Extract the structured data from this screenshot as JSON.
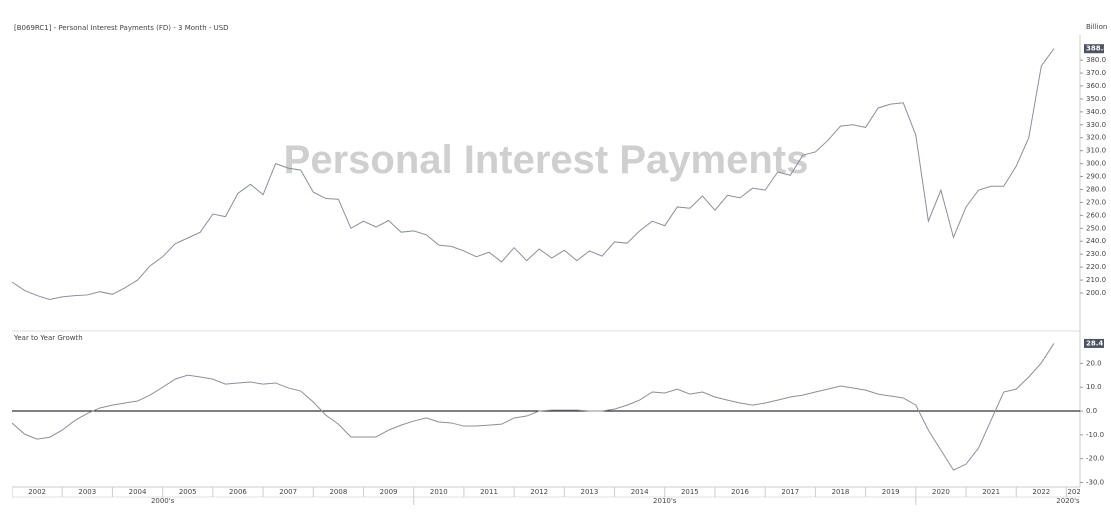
{
  "chart_data": [
    {
      "type": "line",
      "title": "[B069RC1] - Personal Interest Payments (FD) - 3 Month - USD",
      "y_unit_label": "Billion",
      "watermark": "Personal Interest Payments",
      "color": "#8a8fa0",
      "xlim": [
        2002,
        2023.27
      ],
      "x": [
        2002,
        2002.25,
        2002.5,
        2002.75,
        2003,
        2003.25,
        2003.5,
        2003.75,
        2004,
        2004.25,
        2004.5,
        2004.75,
        2005,
        2005.25,
        2005.5,
        2005.75,
        2006,
        2006.25,
        2006.5,
        2006.75,
        2007,
        2007.25,
        2007.5,
        2007.75,
        2008,
        2008.25,
        2008.5,
        2008.75,
        2009,
        2009.25,
        2009.5,
        2009.75,
        2010,
        2010.25,
        2010.5,
        2010.75,
        2011,
        2011.25,
        2011.5,
        2011.75,
        2012,
        2012.25,
        2012.5,
        2012.75,
        2013,
        2013.25,
        2013.5,
        2013.75,
        2014,
        2014.25,
        2014.5,
        2014.75,
        2015,
        2015.25,
        2015.5,
        2015.75,
        2016,
        2016.25,
        2016.5,
        2016.75,
        2017,
        2017.25,
        2017.5,
        2017.75,
        2018,
        2018.25,
        2018.5,
        2018.75,
        2019,
        2019.25,
        2019.5,
        2019.75,
        2020,
        2020.25,
        2020.5,
        2020.75,
        2021,
        2021.25,
        2021.5,
        2021.75,
        2022,
        2022.25,
        2022.5,
        2022.75
      ],
      "values": [
        208.5,
        202,
        198,
        195,
        197,
        198,
        198.5,
        201,
        199,
        204,
        210,
        221,
        228,
        238,
        242.5,
        247,
        261,
        259,
        277,
        284,
        276,
        300,
        296.5,
        295,
        278,
        273,
        272.5,
        250,
        255.5,
        251,
        256,
        247,
        248,
        245,
        237,
        236,
        232.5,
        228,
        231.5,
        224,
        235,
        225,
        234,
        227,
        233,
        225,
        232.5,
        228.5,
        239.5,
        238.5,
        248,
        255.5,
        252,
        266.5,
        265.5,
        275,
        264,
        275.5,
        273.5,
        281,
        279.5,
        293.5,
        291,
        306.5,
        309,
        318,
        329,
        330,
        328,
        343,
        346,
        347,
        322,
        255.5,
        279.5,
        243,
        266.5,
        279.5,
        282.5,
        282.5,
        298,
        320,
        375.5,
        388.8
      ],
      "ylim": [
        171.4,
        399.4
      ],
      "yticks": [
        {
          "value": 200,
          "label": "200.0"
        },
        {
          "value": 210,
          "label": "210.0"
        },
        {
          "value": 220,
          "label": "220.0"
        },
        {
          "value": 230,
          "label": "230.0"
        },
        {
          "value": 240,
          "label": "240.0"
        },
        {
          "value": 250,
          "label": "250.0"
        },
        {
          "value": 260,
          "label": "260.0"
        },
        {
          "value": 270,
          "label": "270.0"
        },
        {
          "value": 280,
          "label": "280.0"
        },
        {
          "value": 290,
          "label": "290.0"
        },
        {
          "value": 300,
          "label": "300.0"
        },
        {
          "value": 310,
          "label": "310.0"
        },
        {
          "value": 320,
          "label": "320.0"
        },
        {
          "value": 330,
          "label": "330.0"
        },
        {
          "value": 340,
          "label": "340.0"
        },
        {
          "value": 350,
          "label": "350.0"
        },
        {
          "value": 360,
          "label": "360.0"
        },
        {
          "value": 370,
          "label": "370.0"
        },
        {
          "value": 380,
          "label": "380.0"
        }
      ]
    },
    {
      "type": "line",
      "title": "Year to Year Growth",
      "color": "#8a8fa0",
      "zero_line": true,
      "xlim": [
        2002,
        2023.27
      ],
      "x": [
        2002,
        2002.25,
        2002.5,
        2002.75,
        2003,
        2003.25,
        2003.5,
        2003.75,
        2004,
        2004.25,
        2004.5,
        2004.75,
        2005,
        2005.25,
        2005.5,
        2005.75,
        2006,
        2006.25,
        2006.5,
        2006.75,
        2007,
        2007.25,
        2007.5,
        2007.75,
        2008,
        2008.25,
        2008.5,
        2008.75,
        2009,
        2009.25,
        2009.5,
        2009.75,
        2010,
        2010.25,
        2010.5,
        2010.75,
        2011,
        2011.25,
        2011.5,
        2011.75,
        2012,
        2012.25,
        2012.5,
        2012.75,
        2013,
        2013.25,
        2013.5,
        2013.75,
        2014,
        2014.25,
        2014.5,
        2014.75,
        2015,
        2015.25,
        2015.5,
        2015.75,
        2016,
        2016.25,
        2016.5,
        2016.75,
        2017,
        2017.25,
        2017.5,
        2017.75,
        2018,
        2018.25,
        2018.5,
        2018.75,
        2019,
        2019.25,
        2019.5,
        2019.75,
        2020,
        2020.25,
        2020.5,
        2020.75,
        2021,
        2021.25,
        2021.5,
        2021.75,
        2022,
        2022.25,
        2022.5,
        2022.75
      ],
      "values": [
        -5,
        -9.7,
        -11.8,
        -11,
        -8,
        -4,
        -1,
        1.3,
        2.5,
        3.4,
        4.2,
        6.7,
        10,
        13.4,
        15.1,
        14.3,
        13.4,
        11.3,
        11.8,
        12.2,
        11.3,
        11.8,
        9.7,
        8.4,
        3.8,
        -1.7,
        -5.5,
        -10.9,
        -10.9,
        -10.9,
        -8,
        -5.9,
        -4.2,
        -2.9,
        -4.6,
        -5,
        -6.3,
        -6.3,
        -5.9,
        -5.5,
        -2.9,
        -2.1,
        0,
        0.4,
        0.4,
        0.4,
        0,
        0,
        0.8,
        2.5,
        4.6,
        8,
        7.6,
        9.2,
        7.1,
        8,
        5.9,
        4.6,
        3.4,
        2.5,
        3.4,
        4.6,
        5.9,
        6.7,
        8,
        9.2,
        10.5,
        9.7,
        8.8,
        7.1,
        6.3,
        5.5,
        2.5,
        -8,
        -16.4,
        -24.8,
        -22.3,
        -15.5,
        -3.8,
        8,
        9.2,
        14.3,
        20.2,
        28.4
      ],
      "ylim": [
        -31.9,
        33.2
      ],
      "yticks": [
        {
          "value": -30,
          "label": "-30.0"
        },
        {
          "value": -20,
          "label": "-20.0"
        },
        {
          "value": -10,
          "label": "-10.0"
        },
        {
          "value": 0,
          "label": "0.0"
        },
        {
          "value": 10,
          "label": "10.0"
        },
        {
          "value": 20,
          "label": "20.0"
        }
      ],
      "xticks": [
        {
          "value": 2002.5,
          "label": "2002"
        },
        {
          "value": 2003.5,
          "label": "2003"
        },
        {
          "value": 2004.5,
          "label": "2004"
        },
        {
          "value": 2005.5,
          "label": "2005"
        },
        {
          "value": 2006.5,
          "label": "2006"
        },
        {
          "value": 2007.5,
          "label": "2007"
        },
        {
          "value": 2008.5,
          "label": "2008"
        },
        {
          "value": 2009.5,
          "label": "2009"
        },
        {
          "value": 2010.5,
          "label": "2010"
        },
        {
          "value": 2011.5,
          "label": "2011"
        },
        {
          "value": 2012.5,
          "label": "2012"
        },
        {
          "value": 2013.5,
          "label": "2013"
        },
        {
          "value": 2014.5,
          "label": "2014"
        },
        {
          "value": 2015.5,
          "label": "2015"
        },
        {
          "value": 2016.5,
          "label": "2016"
        },
        {
          "value": 2017.5,
          "label": "2017"
        },
        {
          "value": 2018.5,
          "label": "2018"
        },
        {
          "value": 2019.5,
          "label": "2019"
        },
        {
          "value": 2020.5,
          "label": "2020"
        },
        {
          "value": 2021.5,
          "label": "2021"
        },
        {
          "value": 2022.5,
          "label": "2022"
        },
        {
          "value": 2023.5,
          "label": "2023"
        }
      ],
      "decade_ticks": [
        {
          "value": 2005,
          "label": "2000's"
        },
        {
          "value": 2015,
          "label": "2010's"
        },
        {
          "value": 2025,
          "label": "2020's"
        }
      ]
    }
  ]
}
